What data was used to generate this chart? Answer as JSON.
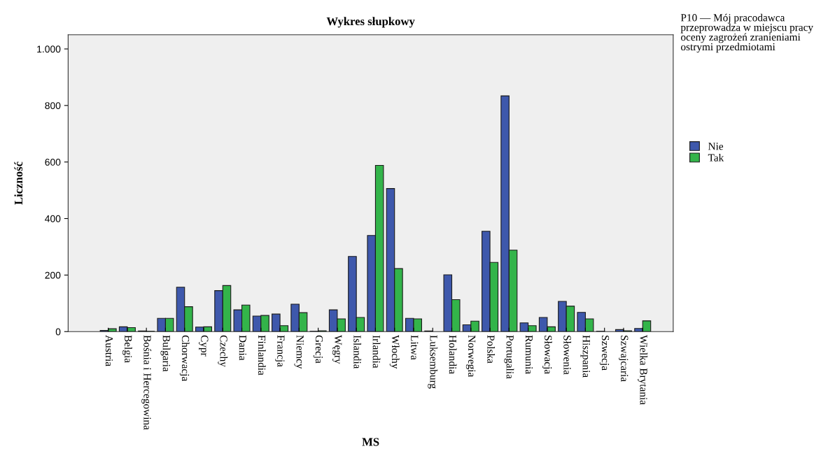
{
  "chart_data": {
    "type": "bar",
    "title": "Wykres słupkowy",
    "xlabel": "MS",
    "ylabel": "Liczność",
    "legend_title": "P10 — Mój pracodawca przeprowadza w miejscu pracy oceny zagrożeń zranieniami ostrymi przedmiotami",
    "categories": [
      "Austria",
      "Belgia",
      "Bośnia i Hercegowina",
      "Bulgaria",
      "Chorwacja",
      "Cypr",
      "Czechy",
      "Dania",
      "Finlandia",
      "Francja",
      "Niemcy",
      "Grecja",
      "Węgry",
      "Islandia",
      "Irlandia",
      "Włochy",
      "Litwa",
      "Luksemburg",
      "Holandia",
      "Norwegia",
      "Polska",
      "Portugalia",
      "Rumunia",
      "Słowacja",
      "Słowenia",
      "Hiszpania",
      "Szwecja",
      "Szwajcaria",
      "Wielka Brytania"
    ],
    "series": [
      {
        "name": "Nie",
        "color": "#3e58ac",
        "values": [
          4,
          17,
          2,
          47,
          157,
          16,
          145,
          77,
          55,
          62,
          97,
          1,
          77,
          266,
          340,
          506,
          47,
          2,
          201,
          24,
          355,
          834,
          31,
          50,
          107,
          68,
          1,
          7,
          11
        ]
      },
      {
        "name": "Tak",
        "color": "#33b44a",
        "values": [
          10,
          14,
          1,
          47,
          88,
          17,
          163,
          94,
          57,
          21,
          67,
          3,
          45,
          50,
          588,
          223,
          45,
          null,
          113,
          37,
          245,
          288,
          21,
          17,
          90,
          45,
          null,
          3,
          38
        ]
      }
    ],
    "ylim": [
      0,
      1050
    ],
    "yticks": [
      0,
      200,
      400,
      600,
      800,
      {
        "value": 1000,
        "label": "1.000"
      }
    ],
    "grid": false,
    "legend": "right"
  }
}
